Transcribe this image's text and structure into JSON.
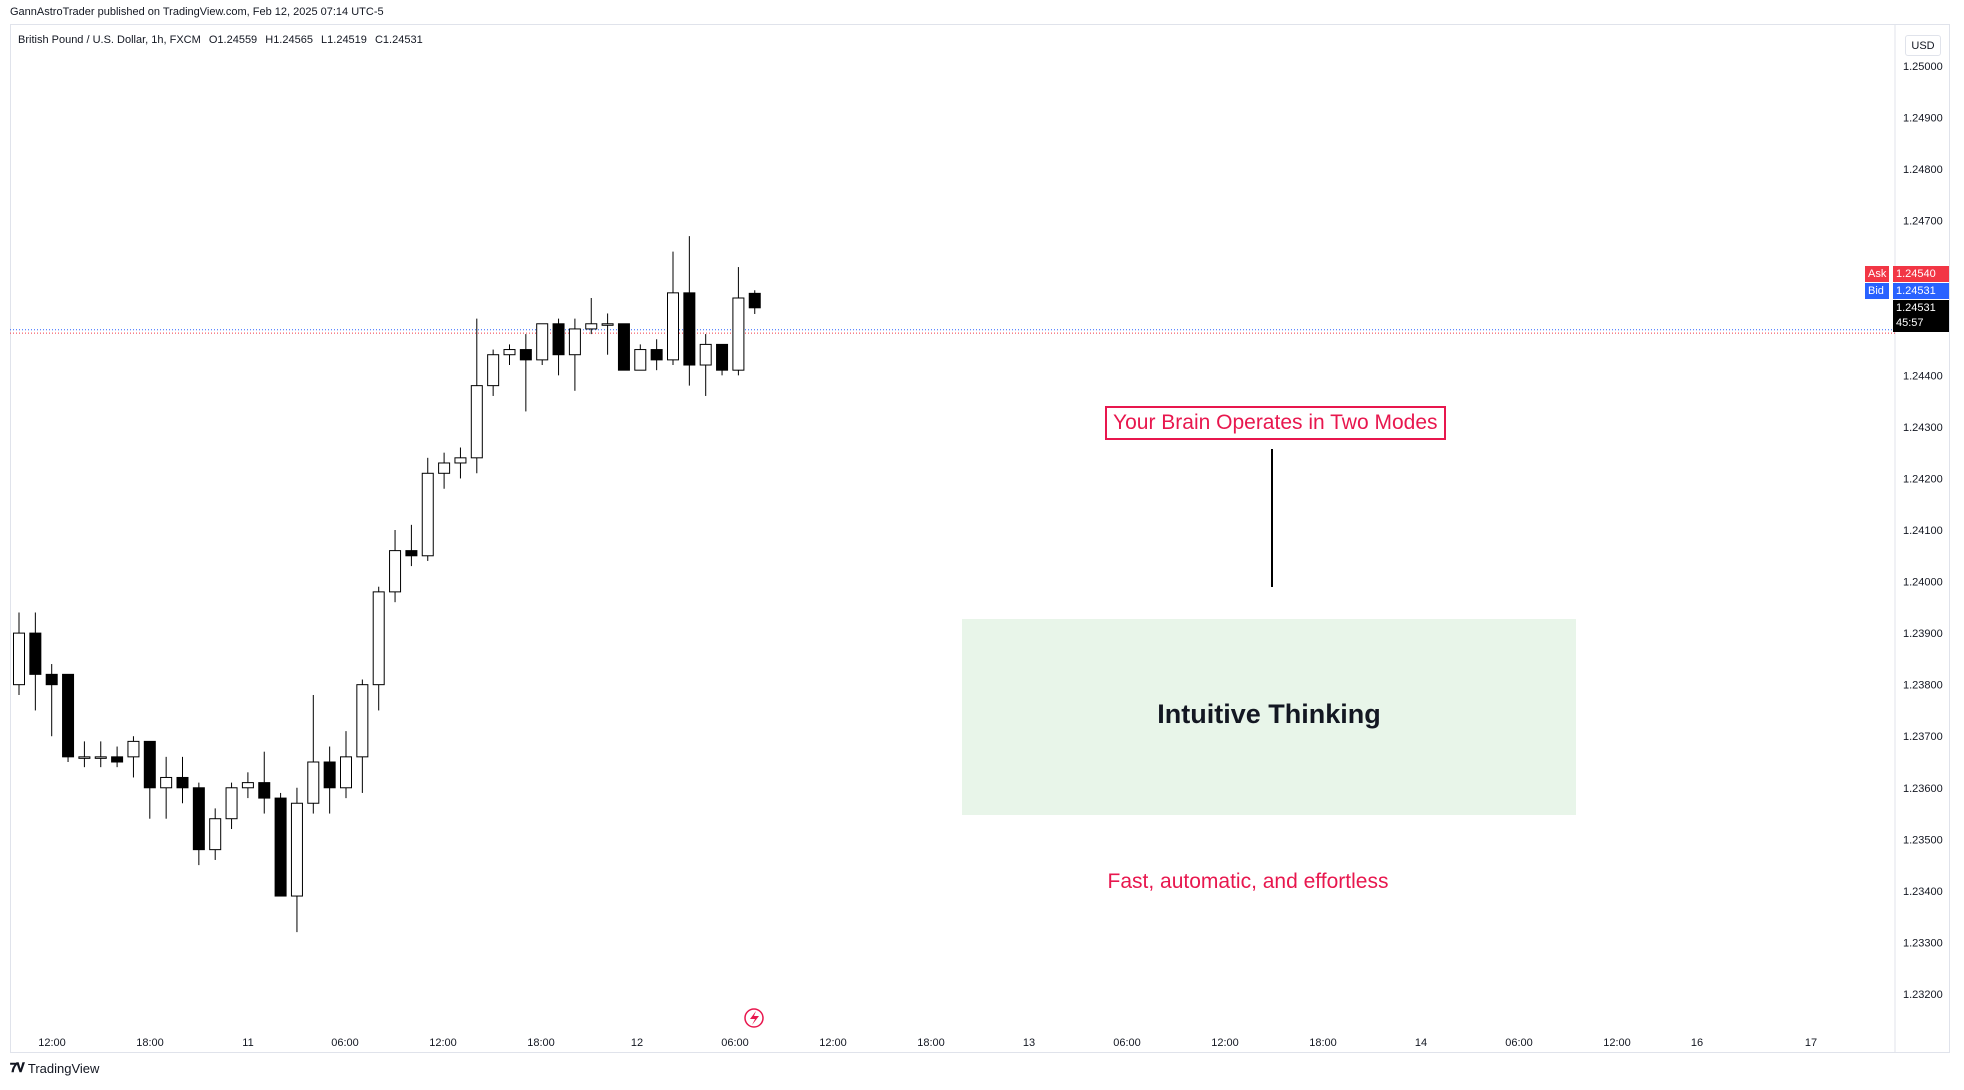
{
  "header": {
    "published_by": "GannAstroTrader published on TradingView.com, Feb 12, 2025 07:14 UTC-5"
  },
  "legend": {
    "symbol": "British Pound / U.S. Dollar, 1h, FXCM",
    "open": "O1.24559",
    "high": "H1.24565",
    "low": "L1.24519",
    "close": "C1.24531"
  },
  "price_scale": {
    "currency": "USD",
    "ask_label": "Ask",
    "ask_price": "1.24540",
    "bid_label": "Bid",
    "bid_price": "1.24531",
    "last_price": "1.24531",
    "countdown": "45:57"
  },
  "annotations": {
    "title": "Your Brain Operates in Two Modes",
    "box_label": "Intuitive Thinking",
    "subtitle": "Fast, automatic, and effortless"
  },
  "footer": {
    "logo": "𝟕𝐕",
    "brand": "TradingView"
  },
  "colors": {
    "accent_red": "#e8174e",
    "ask": "#f23645",
    "bid": "#2962ff",
    "box_fill": "#e8f5e9",
    "up_candle": "#ffffff",
    "down_candle": "#000000"
  },
  "chart_data": {
    "type": "candlestick",
    "title": "",
    "xlabel": "",
    "ylabel": "",
    "ylim": [
      1.2315,
      1.2505
    ],
    "y_ticks": [
      "1.25000",
      "1.24900",
      "1.24800",
      "1.24700",
      "1.24400",
      "1.24300",
      "1.24200",
      "1.24100",
      "1.24000",
      "1.23900",
      "1.23800",
      "1.23700",
      "1.23600",
      "1.23500",
      "1.23400",
      "1.23300",
      "1.23200"
    ],
    "x_ticks": [
      "12:00",
      "18:00",
      "11",
      "06:00",
      "12:00",
      "18:00",
      "12",
      "06:00",
      "12:00",
      "18:00",
      "13",
      "06:00",
      "12:00",
      "18:00",
      "14",
      "06:00",
      "12:00",
      "16",
      "17"
    ],
    "candles": [
      {
        "o": 1.238,
        "h": 1.2394,
        "l": 1.2378,
        "c": 1.239
      },
      {
        "o": 1.239,
        "h": 1.2394,
        "l": 1.2375,
        "c": 1.2382
      },
      {
        "o": 1.2382,
        "h": 1.2384,
        "l": 1.237,
        "c": 1.238
      },
      {
        "o": 1.2382,
        "h": 1.2382,
        "l": 1.2365,
        "c": 1.2366
      },
      {
        "o": 1.2366,
        "h": 1.2369,
        "l": 1.2364,
        "c": 1.2366
      },
      {
        "o": 1.2366,
        "h": 1.2369,
        "l": 1.2364,
        "c": 1.2366
      },
      {
        "o": 1.2366,
        "h": 1.2368,
        "l": 1.2364,
        "c": 1.2365
      },
      {
        "o": 1.2366,
        "h": 1.237,
        "l": 1.2362,
        "c": 1.2369
      },
      {
        "o": 1.2369,
        "h": 1.2369,
        "l": 1.2354,
        "c": 1.236
      },
      {
        "o": 1.236,
        "h": 1.2366,
        "l": 1.2354,
        "c": 1.2362
      },
      {
        "o": 1.2362,
        "h": 1.2366,
        "l": 1.2357,
        "c": 1.236
      },
      {
        "o": 1.236,
        "h": 1.2361,
        "l": 1.2345,
        "c": 1.2348
      },
      {
        "o": 1.2348,
        "h": 1.2356,
        "l": 1.2346,
        "c": 1.2354
      },
      {
        "o": 1.2354,
        "h": 1.2361,
        "l": 1.2352,
        "c": 1.236
      },
      {
        "o": 1.236,
        "h": 1.2363,
        "l": 1.2358,
        "c": 1.2361
      },
      {
        "o": 1.2361,
        "h": 1.2367,
        "l": 1.2355,
        "c": 1.2358
      },
      {
        "o": 1.2358,
        "h": 1.2359,
        "l": 1.2339,
        "c": 1.2339
      },
      {
        "o": 1.2339,
        "h": 1.236,
        "l": 1.2332,
        "c": 1.2357
      },
      {
        "o": 1.2357,
        "h": 1.2378,
        "l": 1.2355,
        "c": 1.2365
      },
      {
        "o": 1.2365,
        "h": 1.2368,
        "l": 1.2355,
        "c": 1.236
      },
      {
        "o": 1.236,
        "h": 1.2371,
        "l": 1.2358,
        "c": 1.2366
      },
      {
        "o": 1.2366,
        "h": 1.2381,
        "l": 1.2359,
        "c": 1.238
      },
      {
        "o": 1.238,
        "h": 1.2399,
        "l": 1.2375,
        "c": 1.2398
      },
      {
        "o": 1.2398,
        "h": 1.241,
        "l": 1.2396,
        "c": 1.2406
      },
      {
        "o": 1.2406,
        "h": 1.2411,
        "l": 1.2403,
        "c": 1.2405
      },
      {
        "o": 1.2405,
        "h": 1.2424,
        "l": 1.2404,
        "c": 1.2421
      },
      {
        "o": 1.2421,
        "h": 1.2425,
        "l": 1.2418,
        "c": 1.2423
      },
      {
        "o": 1.2423,
        "h": 1.2426,
        "l": 1.242,
        "c": 1.2424
      },
      {
        "o": 1.2424,
        "h": 1.2451,
        "l": 1.2421,
        "c": 1.2438
      },
      {
        "o": 1.2438,
        "h": 1.2445,
        "l": 1.2436,
        "c": 1.2444
      },
      {
        "o": 1.2444,
        "h": 1.2446,
        "l": 1.2442,
        "c": 1.2445
      },
      {
        "o": 1.2445,
        "h": 1.2448,
        "l": 1.2433,
        "c": 1.2443
      },
      {
        "o": 1.2443,
        "h": 1.245,
        "l": 1.2442,
        "c": 1.245
      },
      {
        "o": 1.245,
        "h": 1.2451,
        "l": 1.244,
        "c": 1.2444
      },
      {
        "o": 1.2444,
        "h": 1.2451,
        "l": 1.2437,
        "c": 1.2449
      },
      {
        "o": 1.2449,
        "h": 1.2455,
        "l": 1.2448,
        "c": 1.245
      },
      {
        "o": 1.245,
        "h": 1.2452,
        "l": 1.2444,
        "c": 1.245
      },
      {
        "o": 1.245,
        "h": 1.245,
        "l": 1.2441,
        "c": 1.2441
      },
      {
        "o": 1.2441,
        "h": 1.2446,
        "l": 1.2441,
        "c": 1.2445
      },
      {
        "o": 1.2445,
        "h": 1.2447,
        "l": 1.2441,
        "c": 1.2443
      },
      {
        "o": 1.2443,
        "h": 1.2464,
        "l": 1.2442,
        "c": 1.2456
      },
      {
        "o": 1.2456,
        "h": 1.2467,
        "l": 1.2438,
        "c": 1.2442
      },
      {
        "o": 1.2442,
        "h": 1.2448,
        "l": 1.2436,
        "c": 1.2446
      },
      {
        "o": 1.2446,
        "h": 1.2446,
        "l": 1.244,
        "c": 1.2441
      },
      {
        "o": 1.2441,
        "h": 1.2461,
        "l": 1.244,
        "c": 1.2455
      },
      {
        "o": 1.24559,
        "h": 1.24565,
        "l": 1.24519,
        "c": 1.24531
      }
    ]
  }
}
